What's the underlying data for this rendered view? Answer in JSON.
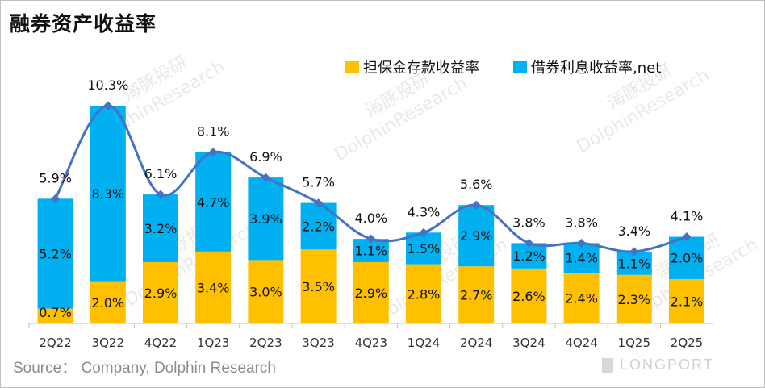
{
  "title": "融券资产收益率",
  "source": "Source： Company, Dolphin Research",
  "brand": "LONGPORT",
  "watermark": {
    "cn": "海豚投研",
    "en": "DolphinResearch"
  },
  "colors": {
    "deposit": "#FFC000",
    "lending": "#00B0F0",
    "line": "#4472C4",
    "axis": "#bfbfbf"
  },
  "chart_data": {
    "type": "bar",
    "stacked": true,
    "title": "融券资产收益率",
    "categories": [
      "2Q22",
      "3Q22",
      "4Q22",
      "1Q23",
      "2Q23",
      "3Q23",
      "4Q23",
      "1Q24",
      "2Q24",
      "3Q24",
      "4Q24",
      "1Q25",
      "2Q25"
    ],
    "series": [
      {
        "name": "担保金存款收益率",
        "values": [
          0.7,
          2.0,
          2.9,
          3.4,
          3.0,
          3.5,
          2.9,
          2.8,
          2.7,
          2.6,
          2.4,
          2.3,
          2.1
        ],
        "labels": [
          "0.7%",
          "2.0%",
          "2.9%",
          "3.4%",
          "3.0%",
          "3.5%",
          "2.9%",
          "2.8%",
          "2.7%",
          "2.6%",
          "2.4%",
          "2.3%",
          "2.1%"
        ]
      },
      {
        "name": "借券利息收益率,net",
        "values": [
          5.2,
          8.3,
          3.2,
          4.7,
          3.9,
          2.2,
          1.1,
          1.5,
          2.9,
          1.2,
          1.4,
          1.1,
          2.0
        ],
        "labels": [
          "5.2%",
          "8.3%",
          "3.2%",
          "4.7%",
          "3.9%",
          "2.2%",
          "1.1%",
          "1.5%",
          "2.9%",
          "1.2%",
          "1.4%",
          "1.1%",
          "2.0%"
        ]
      }
    ],
    "total": {
      "values": [
        5.9,
        10.3,
        6.1,
        8.1,
        6.9,
        5.7,
        4.0,
        4.3,
        5.6,
        3.8,
        3.8,
        3.4,
        4.1
      ],
      "labels": [
        "5.9%",
        "10.3%",
        "6.1%",
        "8.1%",
        "6.9%",
        "5.7%",
        "4.0%",
        "4.3%",
        "5.6%",
        "3.8%",
        "3.8%",
        "3.4%",
        "4.1%"
      ]
    },
    "ylim": [
      0,
      10.3
    ],
    "legend_position": "top-right",
    "xlabel": "",
    "ylabel": ""
  }
}
